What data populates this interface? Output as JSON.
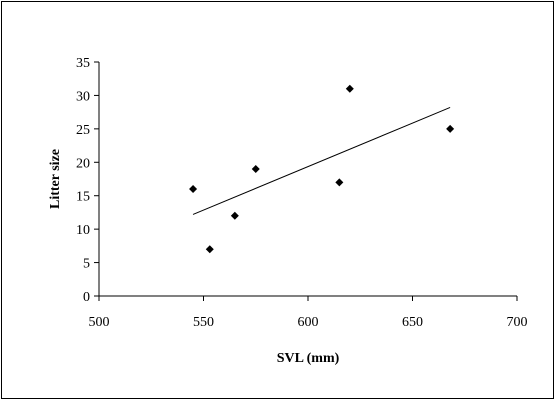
{
  "chart_data": {
    "type": "scatter",
    "title": "",
    "xlabel": "SVL (mm)",
    "ylabel": "Litter size",
    "xlim": [
      500,
      700
    ],
    "ylim": [
      0,
      35
    ],
    "x_ticks": [
      500,
      550,
      600,
      650,
      700
    ],
    "y_ticks": [
      0,
      5,
      10,
      15,
      20,
      25,
      30,
      35
    ],
    "grid": false,
    "legend": "none",
    "series": [
      {
        "points": [
          {
            "x": 545,
            "y": 16
          },
          {
            "x": 553,
            "y": 7
          },
          {
            "x": 565,
            "y": 12
          },
          {
            "x": 575,
            "y": 19
          },
          {
            "x": 615,
            "y": 17
          },
          {
            "x": 620,
            "y": 31
          },
          {
            "x": 668,
            "y": 25
          }
        ]
      }
    ],
    "trendline": {
      "type": "linear",
      "x_start": 545,
      "y_start": 12.2,
      "x_end": 668,
      "y_end": 28.2
    },
    "colors": {
      "marker": "#000000",
      "line": "#000000",
      "axis": "#000000"
    }
  }
}
